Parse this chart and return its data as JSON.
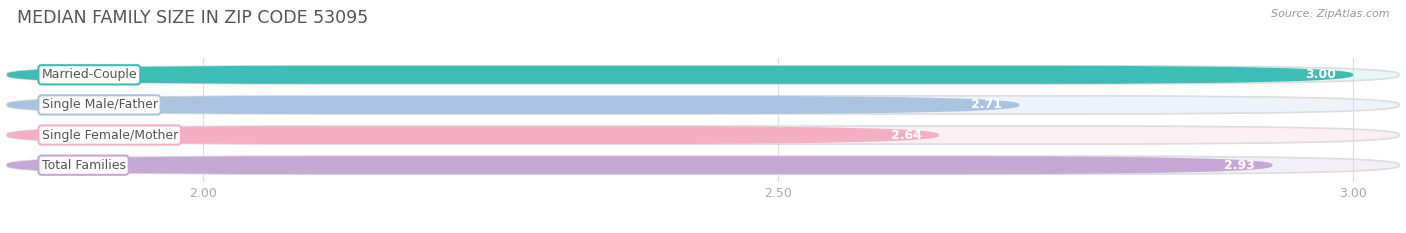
{
  "title": "MEDIAN FAMILY SIZE IN ZIP CODE 53095",
  "source": "Source: ZipAtlas.com",
  "categories": [
    "Married-Couple",
    "Single Male/Father",
    "Single Female/Mother",
    "Total Families"
  ],
  "values": [
    3.0,
    2.71,
    2.64,
    2.93
  ],
  "bar_colors": [
    "#3dbdb6",
    "#a8c4e0",
    "#f5afc5",
    "#c5a8d5"
  ],
  "bar_bg_colors": [
    "#e8f8f7",
    "#eef4fb",
    "#fdf0f5",
    "#f4f0f8"
  ],
  "border_colors": [
    "#3dbdb6",
    "#a8c4e0",
    "#f5afc5",
    "#c5a8d5"
  ],
  "xlim_min": 1.83,
  "xlim_max": 3.04,
  "xticks": [
    2.0,
    2.5,
    3.0
  ],
  "xtick_labels": [
    "2.00",
    "2.50",
    "3.00"
  ],
  "bar_height": 0.6,
  "title_fontsize": 12.5,
  "label_fontsize": 9,
  "value_fontsize": 9,
  "tick_fontsize": 9,
  "background_color": "#ffffff",
  "grid_color": "#dddddd",
  "label_text_color": "#555555",
  "value_text_color": "#ffffff",
  "tick_color": "#aaaaaa",
  "title_color": "#555555",
  "source_color": "#999999"
}
